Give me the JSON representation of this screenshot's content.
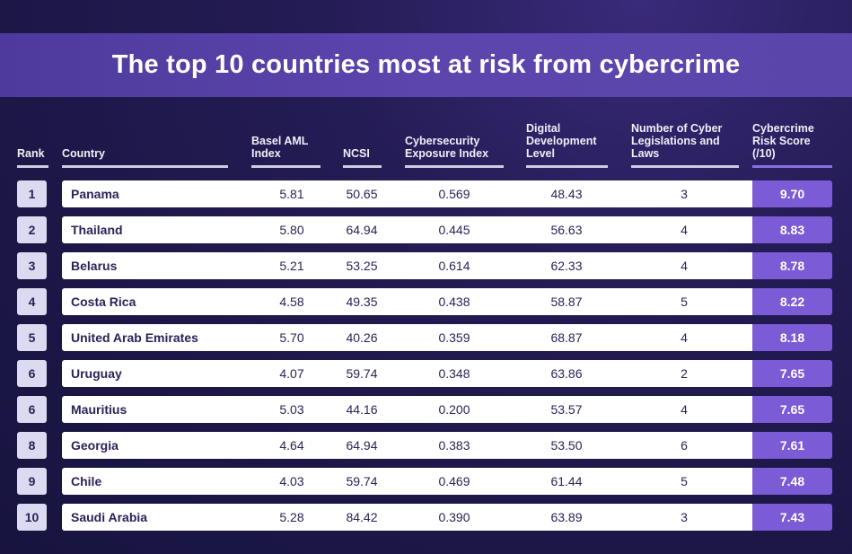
{
  "title": "The top 10 countries most at risk from cybercrime",
  "headers": {
    "rank": "Rank",
    "country": "Country",
    "basel": "Basel AML\nIndex",
    "ncsi": "NCSI",
    "exposure": "Cybersecurity\nExposure  Index",
    "digital": "Digital\nDevelopment\nLevel",
    "laws": "Number of Cyber\nLegislations and\nLaws",
    "score": "Cybercrime\nRisk Score\n(/10)"
  },
  "colors": {
    "accent": "#7b5bd6",
    "title_band": "#5542a5",
    "background": "#1e1849"
  },
  "chart_data": {
    "type": "table",
    "title": "The top 10 countries most at risk from cybercrime",
    "columns": [
      "Rank",
      "Country",
      "Basel AML Index",
      "NCSI",
      "Cybersecurity Exposure Index",
      "Digital Development Level",
      "Number of Cyber Legislations and Laws",
      "Cybercrime Risk Score (/10)"
    ],
    "rows": [
      {
        "rank": "1",
        "country": "Panama",
        "basel": "5.81",
        "ncsi": "50.65",
        "exposure": "0.569",
        "digital": "48.43",
        "laws": "3",
        "score": "9.70"
      },
      {
        "rank": "2",
        "country": "Thailand",
        "basel": "5.80",
        "ncsi": "64.94",
        "exposure": "0.445",
        "digital": "56.63",
        "laws": "4",
        "score": "8.83"
      },
      {
        "rank": "3",
        "country": "Belarus",
        "basel": "5.21",
        "ncsi": "53.25",
        "exposure": "0.614",
        "digital": "62.33",
        "laws": "4",
        "score": "8.78"
      },
      {
        "rank": "4",
        "country": "Costa Rica",
        "basel": "4.58",
        "ncsi": "49.35",
        "exposure": "0.438",
        "digital": "58.87",
        "laws": "5",
        "score": "8.22"
      },
      {
        "rank": "5",
        "country": "United Arab Emirates",
        "basel": "5.70",
        "ncsi": "40.26",
        "exposure": "0.359",
        "digital": "68.87",
        "laws": "4",
        "score": "8.18"
      },
      {
        "rank": "6",
        "country": "Uruguay",
        "basel": "4.07",
        "ncsi": "59.74",
        "exposure": "0.348",
        "digital": "63.86",
        "laws": "2",
        "score": "7.65"
      },
      {
        "rank": "6",
        "country": "Mauritius",
        "basel": "5.03",
        "ncsi": "44.16",
        "exposure": "0.200",
        "digital": "53.57",
        "laws": "4",
        "score": "7.65"
      },
      {
        "rank": "8",
        "country": "Georgia",
        "basel": "4.64",
        "ncsi": "64.94",
        "exposure": "0.383",
        "digital": "53.50",
        "laws": "6",
        "score": "7.61"
      },
      {
        "rank": "9",
        "country": "Chile",
        "basel": "4.03",
        "ncsi": "59.74",
        "exposure": "0.469",
        "digital": "61.44",
        "laws": "5",
        "score": "7.48"
      },
      {
        "rank": "10",
        "country": "Saudi Arabia",
        "basel": "5.28",
        "ncsi": "84.42",
        "exposure": "0.390",
        "digital": "63.89",
        "laws": "3",
        "score": "7.43"
      }
    ]
  }
}
